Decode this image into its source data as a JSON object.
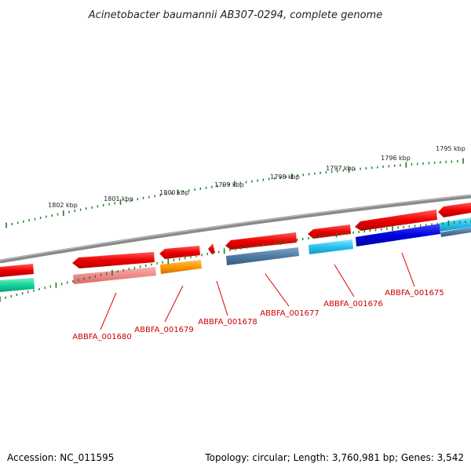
{
  "title": "Acinetobacter baumannii AB307-0294, complete genome",
  "accession": "Accession: NC_011595",
  "summary": "Topology: circular; Length: 3,760,981 bp; Genes: 3,542",
  "ruler": [
    "1802 kbp",
    "1801 kbp",
    "1800 kbp",
    "1799 kbp",
    "1798 kbp",
    "1797 kbp",
    "1796 kbp",
    "1795 kbp"
  ],
  "gene_labels": [
    "ABBFA_001680",
    "ABBFA_001679",
    "ABBFA_001678",
    "ABBFA_001677",
    "ABBFA_001676",
    "ABBFA_001675"
  ],
  "colors": {
    "backbone": "#8a8a8a",
    "forward_gene": "#ee0000",
    "tick": "#1e7d1e",
    "label": "#cc0000",
    "light_red": "#f08a8a",
    "orange": "#ff9800",
    "steel_blue": "#4f7aa3",
    "cyan": "#25c2f0",
    "blue": "#0000dd",
    "teal": "#11d69a"
  }
}
